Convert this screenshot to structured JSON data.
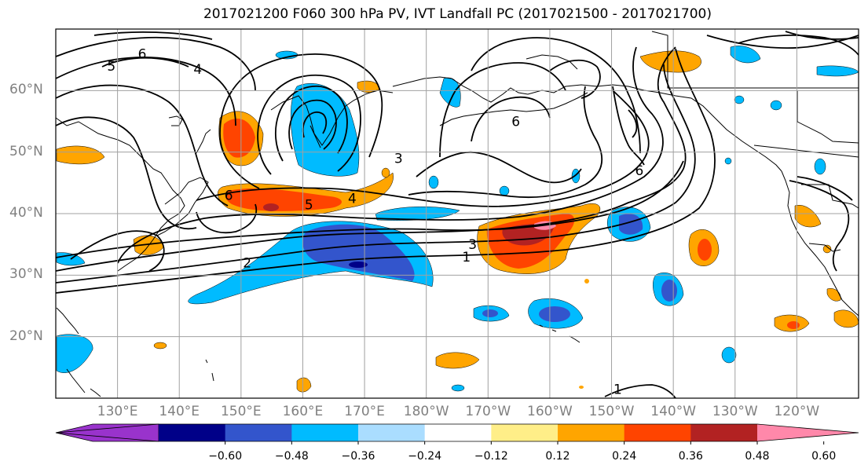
{
  "title": "2017021200 F060 300 hPa PV, IVT Landfall PC (2017021500 - 2017021700)",
  "map": {
    "projection": "cylindrical",
    "lon_range_east": [
      120,
      250
    ],
    "lat_range": [
      10,
      70
    ],
    "graticule_color": "#a0a0a0",
    "frame_color": "#000000",
    "lat_ticks": [
      {
        "lat": 60,
        "label": "60°N"
      },
      {
        "lat": 50,
        "label": "50°N"
      },
      {
        "lat": 40,
        "label": "40°N"
      },
      {
        "lat": 30,
        "label": "30°N"
      },
      {
        "lat": 20,
        "label": "20°N"
      }
    ],
    "lon_ticks": [
      {
        "lon": 130,
        "label": "130°E"
      },
      {
        "lon": 140,
        "label": "140°E"
      },
      {
        "lon": 150,
        "label": "150°E"
      },
      {
        "lon": 160,
        "label": "160°E"
      },
      {
        "lon": 170,
        "label": "170°E"
      },
      {
        "lon": 180,
        "label": "180°W"
      },
      {
        "lon": 190,
        "label": "170°W"
      },
      {
        "lon": 200,
        "label": "160°W"
      },
      {
        "lon": 210,
        "label": "150°W"
      },
      {
        "lon": 220,
        "label": "140°W"
      },
      {
        "lon": 230,
        "label": "130°W"
      },
      {
        "lon": 240,
        "label": "120°W"
      }
    ],
    "contour_labels": [
      {
        "text": "6",
        "lon": 134,
        "lat": 66
      },
      {
        "text": "5",
        "lon": 129,
        "lat": 64
      },
      {
        "text": "4",
        "lon": 143,
        "lat": 63.5
      },
      {
        "text": "6",
        "lon": 148,
        "lat": 43
      },
      {
        "text": "5",
        "lon": 161,
        "lat": 41.5
      },
      {
        "text": "4",
        "lon": 168,
        "lat": 42.5
      },
      {
        "text": "3",
        "lon": 187.5,
        "lat": 35
      },
      {
        "text": "2",
        "lon": 151,
        "lat": 32
      },
      {
        "text": "1",
        "lon": 186.5,
        "lat": 33
      },
      {
        "text": "6",
        "lon": 194.5,
        "lat": 55
      },
      {
        "text": "6",
        "lon": 214.5,
        "lat": 47
      },
      {
        "text": "1",
        "lon": 211,
        "lat": 11.5
      },
      {
        "text": "3",
        "lon": 175.5,
        "lat": 49
      }
    ]
  },
  "colorbar": {
    "colors": [
      "#9933cc",
      "#000088",
      "#3355cc",
      "#00bbff",
      "#aaddff",
      "#ffffff",
      "#ffee88",
      "#ffa500",
      "#ff4400",
      "#b22222",
      "#ff88aa"
    ],
    "labels": [
      "−0.60",
      "−0.48",
      "−0.36",
      "−0.24",
      "−0.12",
      "0.12",
      "0.24",
      "0.36",
      "0.48",
      "0.60"
    ]
  }
}
